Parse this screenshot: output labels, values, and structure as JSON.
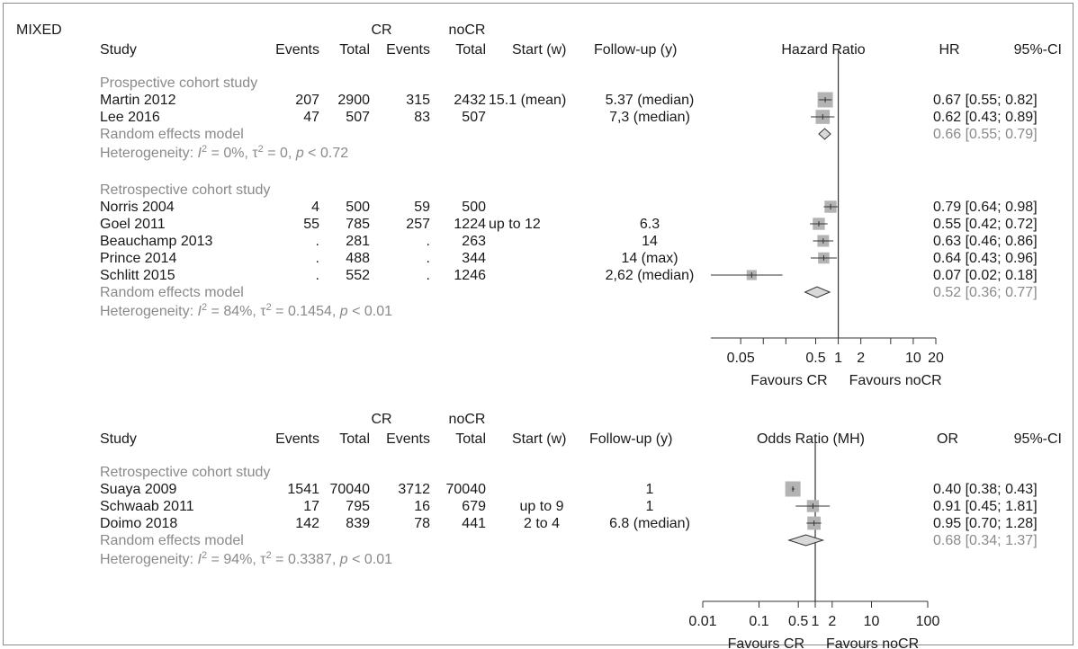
{
  "section_label": "MIXED",
  "colors": {
    "text": "#1a1a1a",
    "model_text": "#8a8a8a",
    "square": "#b3b3b3",
    "line": "#333333"
  },
  "chart_data": [
    {
      "type": "forest",
      "headers": {
        "study": "Study",
        "cr": "CR",
        "nocr": "noCR",
        "events": "Events",
        "total": "Total",
        "start": "Start (w)",
        "followup": "Follow-up (y)",
        "measure": "Hazard Ratio",
        "effect": "HR",
        "ci": "95%-CI"
      },
      "axis": {
        "type": "log",
        "ticks": [
          0.05,
          0.5,
          1,
          2,
          10,
          20
        ],
        "tick_labels": [
          "0.05",
          "0.5",
          "1",
          "2",
          "10",
          "20"
        ],
        "left_label": "Favours CR",
        "right_label": "Favours noCR",
        "reference": 1
      },
      "groups": [
        {
          "label": "Prospective cohort study",
          "studies": [
            {
              "study": "Martin 2012",
              "cr_events": "207",
              "cr_total": "2900",
              "nocr_events": "315",
              "nocr_total": "2432",
              "start": "15.1 (mean)",
              "followup": "5.37 (median)",
              "est": 0.67,
              "lo": 0.55,
              "hi": 0.82,
              "weight": 1.0,
              "text": "0.67 [0.55; 0.82]"
            },
            {
              "study": "Lee 2016",
              "cr_events": "47",
              "cr_total": "507",
              "nocr_events": "83",
              "nocr_total": "507",
              "start": "",
              "followup": "7,3 (median)",
              "est": 0.62,
              "lo": 0.43,
              "hi": 0.89,
              "weight": 0.85,
              "text": "0.62 [0.43; 0.89]"
            }
          ],
          "model": {
            "label": "Random effects model",
            "est": 0.66,
            "lo": 0.55,
            "hi": 0.79,
            "text": "0.66 [0.55; 0.79]"
          },
          "heterogeneity": {
            "prefix": "Heterogeneity: ",
            "i2": "I",
            "i2_val": " = 0%, ",
            "tau": "τ",
            "tau_val": " = 0, ",
            "p": "p",
            "p_val": " < 0.72"
          }
        },
        {
          "label": "Retrospective cohort study",
          "studies": [
            {
              "study": "Norris 2004",
              "cr_events": "4",
              "cr_total": "500",
              "nocr_events": "59",
              "nocr_total": "500",
              "start": "",
              "followup": "",
              "est": 0.79,
              "lo": 0.64,
              "hi": 0.98,
              "weight": 0.6,
              "text": "0.79 [0.64; 0.98]"
            },
            {
              "study": "Goel 2011",
              "cr_events": "55",
              "cr_total": "785",
              "nocr_events": "257",
              "nocr_total": "1224",
              "start": "up to 12",
              "followup": "6.3",
              "est": 0.55,
              "lo": 0.42,
              "hi": 0.72,
              "weight": 0.6,
              "text": "0.55 [0.42; 0.72]"
            },
            {
              "study": "Beauchamp 2013",
              "cr_events": ".",
              "cr_total": "281",
              "nocr_events": ".",
              "nocr_total": "263",
              "start": "",
              "followup": "14",
              "est": 0.63,
              "lo": 0.46,
              "hi": 0.86,
              "weight": 0.55,
              "text": "0.63 [0.46; 0.86]"
            },
            {
              "study": "Prince 2014",
              "cr_events": ".",
              "cr_total": "488",
              "nocr_events": ".",
              "nocr_total": "344",
              "start": "",
              "followup": "14 (max)",
              "est": 0.64,
              "lo": 0.43,
              "hi": 0.96,
              "weight": 0.5,
              "text": "0.64 [0.43; 0.96]"
            },
            {
              "study": "Schlitt 2015",
              "cr_events": ".",
              "cr_total": "552",
              "nocr_events": ".",
              "nocr_total": "1246",
              "start": "",
              "followup": "2,62 (median)",
              "est": 0.07,
              "lo": 0.02,
              "hi": 0.18,
              "weight": 0.35,
              "text": "0.07 [0.02; 0.18]"
            }
          ],
          "model": {
            "label": "Random effects model",
            "est": 0.52,
            "lo": 0.36,
            "hi": 0.77,
            "text": "0.52 [0.36; 0.77]"
          },
          "heterogeneity": {
            "prefix": "Heterogeneity: ",
            "i2": "I",
            "i2_val": " = 84%, ",
            "tau": "τ",
            "tau_val": " = 0.1454, ",
            "p": "p",
            "p_val": " < 0.01"
          }
        }
      ]
    },
    {
      "type": "forest",
      "headers": {
        "study": "Study",
        "cr": "CR",
        "nocr": "noCR",
        "events": "Events",
        "total": "Total",
        "start": "Start (w)",
        "followup": "Follow-up (y)",
        "measure": "Odds Ratio (MH)",
        "effect": "OR",
        "ci": "95%-CI"
      },
      "axis": {
        "type": "log",
        "ticks": [
          0.01,
          0.1,
          0.5,
          1,
          2,
          10,
          100
        ],
        "tick_labels": [
          "0.01",
          "0.1",
          "0.5",
          "1",
          "2",
          "10",
          "100"
        ],
        "left_label": "Favours CR",
        "right_label": "Favours noCR",
        "reference": 1
      },
      "groups": [
        {
          "label": "Retrospective cohort study",
          "studies": [
            {
              "study": "Suaya 2009",
              "cr_events": "1541",
              "cr_total": "70040",
              "nocr_events": "3712",
              "nocr_total": "70040",
              "start": "",
              "followup": "1",
              "est": 0.4,
              "lo": 0.38,
              "hi": 0.43,
              "weight": 1.0,
              "text": "0.40 [0.38; 0.43]"
            },
            {
              "study": "Schwaab 2011",
              "cr_events": "17",
              "cr_total": "795",
              "nocr_events": "16",
              "nocr_total": "679",
              "start": "up to 9",
              "followup": "1",
              "est": 0.91,
              "lo": 0.45,
              "hi": 1.81,
              "weight": 0.6,
              "text": "0.91 [0.45; 1.81]"
            },
            {
              "study": "Doimo 2018",
              "cr_events": "142",
              "cr_total": "839",
              "nocr_events": "78",
              "nocr_total": "441",
              "start": "2 to 4",
              "followup": "6.8 (median)",
              "est": 0.95,
              "lo": 0.7,
              "hi": 1.28,
              "weight": 0.75,
              "text": "0.95 [0.70; 1.28]"
            }
          ],
          "model": {
            "label": "Random effects model",
            "est": 0.68,
            "lo": 0.34,
            "hi": 1.37,
            "text": "0.68 [0.34; 1.37]"
          },
          "heterogeneity": {
            "prefix": "Heterogeneity: ",
            "i2": "I",
            "i2_val": " = 94%, ",
            "tau": "τ",
            "tau_val": " = 0.3387, ",
            "p": "p",
            "p_val": " < 0.01"
          }
        }
      ]
    }
  ]
}
